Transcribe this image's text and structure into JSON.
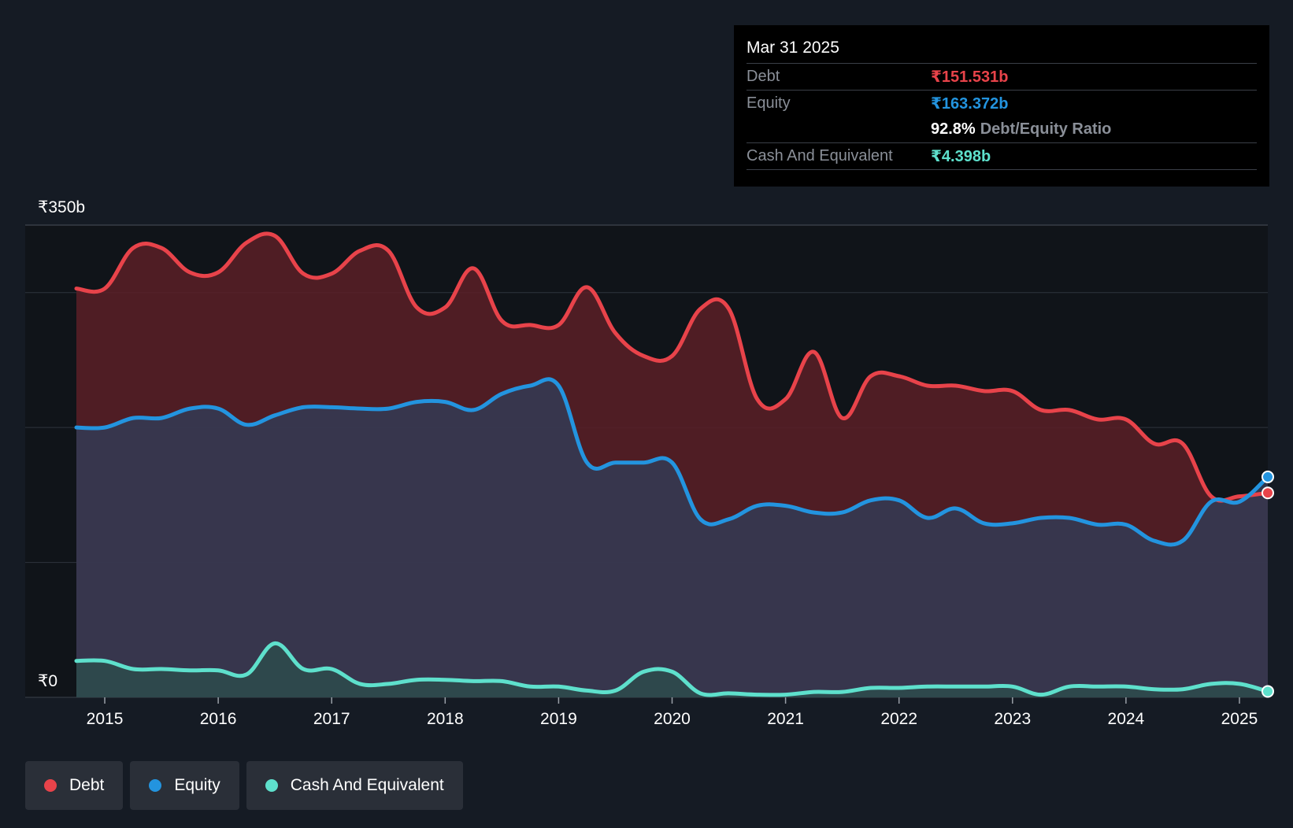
{
  "chart_data": {
    "type": "area",
    "currency": "₹",
    "x_start": 2014.75,
    "x_end": 2025.25,
    "ylim": [
      0,
      350
    ],
    "y_tick_labels": [
      {
        "value": 350,
        "label": "₹350b"
      },
      {
        "value": 0,
        "label": "₹0"
      }
    ],
    "y_gridlines": [
      0,
      100,
      200,
      300,
      350
    ],
    "x_ticks": [
      {
        "value": 2015,
        "label": "2015"
      },
      {
        "value": 2016,
        "label": "2016"
      },
      {
        "value": 2017,
        "label": "2017"
      },
      {
        "value": 2018,
        "label": "2018"
      },
      {
        "value": 2019,
        "label": "2019"
      },
      {
        "value": 2020,
        "label": "2020"
      },
      {
        "value": 2021,
        "label": "2021"
      },
      {
        "value": 2022,
        "label": "2022"
      },
      {
        "value": 2023,
        "label": "2023"
      },
      {
        "value": 2024,
        "label": "2024"
      },
      {
        "value": 2025,
        "label": "2025"
      }
    ],
    "series": [
      {
        "name": "Debt",
        "color": "#e8434a",
        "fill": "#5a1f27",
        "points": [
          [
            2014.75,
            303
          ],
          [
            2015.0,
            303
          ],
          [
            2015.25,
            333
          ],
          [
            2015.5,
            333
          ],
          [
            2015.75,
            315
          ],
          [
            2016.0,
            315
          ],
          [
            2016.25,
            337
          ],
          [
            2016.5,
            342
          ],
          [
            2016.75,
            314
          ],
          [
            2017.0,
            314
          ],
          [
            2017.25,
            331
          ],
          [
            2017.5,
            331
          ],
          [
            2017.75,
            289
          ],
          [
            2018.0,
            289
          ],
          [
            2018.25,
            318
          ],
          [
            2018.5,
            279
          ],
          [
            2018.75,
            276
          ],
          [
            2019.0,
            276
          ],
          [
            2019.25,
            304
          ],
          [
            2019.5,
            270
          ],
          [
            2019.75,
            253
          ],
          [
            2020.0,
            253
          ],
          [
            2020.25,
            288
          ],
          [
            2020.5,
            288
          ],
          [
            2020.75,
            221
          ],
          [
            2021.0,
            221
          ],
          [
            2021.25,
            256
          ],
          [
            2021.5,
            207
          ],
          [
            2021.75,
            238
          ],
          [
            2022.0,
            238
          ],
          [
            2022.25,
            231
          ],
          [
            2022.5,
            231
          ],
          [
            2022.75,
            227
          ],
          [
            2023.0,
            227
          ],
          [
            2023.25,
            213
          ],
          [
            2023.5,
            213
          ],
          [
            2023.75,
            206
          ],
          [
            2024.0,
            206
          ],
          [
            2024.25,
            188
          ],
          [
            2024.5,
            188
          ],
          [
            2024.75,
            149
          ],
          [
            2025.0,
            149
          ],
          [
            2025.25,
            151.531
          ]
        ]
      },
      {
        "name": "Equity",
        "color": "#2394df",
        "fill": "#343a52",
        "points": [
          [
            2014.75,
            200
          ],
          [
            2015.0,
            200
          ],
          [
            2015.25,
            207
          ],
          [
            2015.5,
            207
          ],
          [
            2015.75,
            214
          ],
          [
            2016.0,
            214
          ],
          [
            2016.25,
            202
          ],
          [
            2016.5,
            209
          ],
          [
            2016.75,
            215
          ],
          [
            2017.0,
            215
          ],
          [
            2017.25,
            214
          ],
          [
            2017.5,
            214
          ],
          [
            2017.75,
            219
          ],
          [
            2018.0,
            219
          ],
          [
            2018.25,
            213
          ],
          [
            2018.5,
            225
          ],
          [
            2018.75,
            231
          ],
          [
            2019.0,
            231
          ],
          [
            2019.25,
            174
          ],
          [
            2019.5,
            174
          ],
          [
            2019.75,
            174
          ],
          [
            2020.0,
            174
          ],
          [
            2020.25,
            132
          ],
          [
            2020.5,
            132
          ],
          [
            2020.75,
            142
          ],
          [
            2021.0,
            142
          ],
          [
            2021.25,
            137
          ],
          [
            2021.5,
            137
          ],
          [
            2021.75,
            146
          ],
          [
            2022.0,
            146
          ],
          [
            2022.25,
            133
          ],
          [
            2022.5,
            140
          ],
          [
            2022.75,
            129
          ],
          [
            2023.0,
            129
          ],
          [
            2023.25,
            133
          ],
          [
            2023.5,
            133
          ],
          [
            2023.75,
            128
          ],
          [
            2024.0,
            128
          ],
          [
            2024.25,
            116
          ],
          [
            2024.5,
            116
          ],
          [
            2024.75,
            145
          ],
          [
            2025.0,
            145
          ],
          [
            2025.25,
            163.372
          ]
        ]
      },
      {
        "name": "Cash And Equivalent",
        "color": "#5ee0cc",
        "fill": "#2e4a4c",
        "points": [
          [
            2014.75,
            27
          ],
          [
            2015.0,
            27
          ],
          [
            2015.25,
            21
          ],
          [
            2015.5,
            21
          ],
          [
            2015.75,
            20
          ],
          [
            2016.0,
            20
          ],
          [
            2016.25,
            17
          ],
          [
            2016.5,
            40
          ],
          [
            2016.75,
            21
          ],
          [
            2017.0,
            21
          ],
          [
            2017.25,
            10
          ],
          [
            2017.5,
            10
          ],
          [
            2017.75,
            13
          ],
          [
            2018.0,
            13
          ],
          [
            2018.25,
            12
          ],
          [
            2018.5,
            12
          ],
          [
            2018.75,
            8
          ],
          [
            2019.0,
            8
          ],
          [
            2019.25,
            5
          ],
          [
            2019.5,
            5
          ],
          [
            2019.75,
            19
          ],
          [
            2020.0,
            19
          ],
          [
            2020.25,
            3
          ],
          [
            2020.5,
            3
          ],
          [
            2020.75,
            2
          ],
          [
            2021.0,
            2
          ],
          [
            2021.25,
            4
          ],
          [
            2021.5,
            4
          ],
          [
            2021.75,
            7
          ],
          [
            2022.0,
            7
          ],
          [
            2022.25,
            8
          ],
          [
            2022.5,
            8
          ],
          [
            2022.75,
            8
          ],
          [
            2023.0,
            8
          ],
          [
            2023.25,
            2
          ],
          [
            2023.5,
            8
          ],
          [
            2023.75,
            8
          ],
          [
            2024.0,
            8
          ],
          [
            2024.25,
            6
          ],
          [
            2024.5,
            6
          ],
          [
            2024.75,
            10
          ],
          [
            2025.0,
            10
          ],
          [
            2025.25,
            4.398
          ]
        ]
      }
    ]
  },
  "tooltip": {
    "date": "Mar 31 2025",
    "debt_label": "Debt",
    "debt_value": "₹151.531b",
    "equity_label": "Equity",
    "equity_value": "₹163.372b",
    "ratio_value": "92.8%",
    "ratio_label": "Debt/Equity Ratio",
    "cash_label": "Cash And Equivalent",
    "cash_value": "₹4.398b"
  },
  "legend": [
    {
      "label": "Debt",
      "color": "#e8434a"
    },
    {
      "label": "Equity",
      "color": "#2394df"
    },
    {
      "label": "Cash And Equivalent",
      "color": "#5ee0cc"
    }
  ],
  "colors": {
    "background": "#151b24",
    "plot_background": "#101419",
    "debt": "#e8434a",
    "equity": "#2394df",
    "cash": "#5ee0cc"
  }
}
